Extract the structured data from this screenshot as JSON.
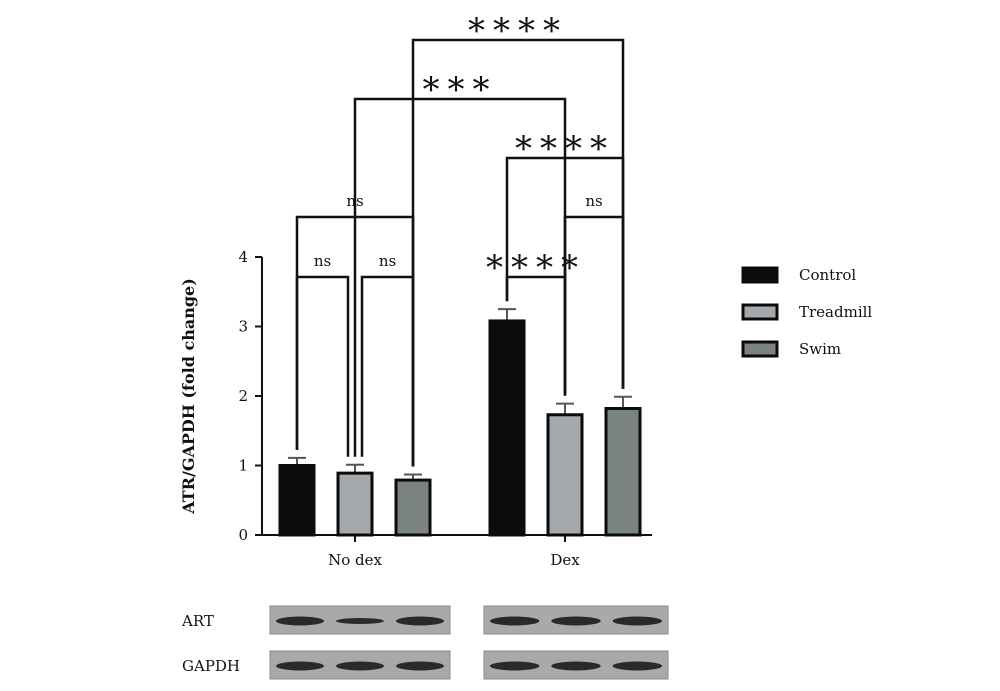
{
  "chart_data": {
    "type": "bar",
    "ylabel": "ATR/GAPDH (fold change)",
    "xlabel": "",
    "ylim": [
      0,
      4
    ],
    "yticks": [
      0,
      1,
      2,
      3,
      4
    ],
    "categories": [
      "No dex",
      "Dex"
    ],
    "series": [
      {
        "name": "Control",
        "color": "#0b0b0b",
        "values": [
          1.0,
          3.08
        ],
        "errors": [
          0.11,
          0.17
        ]
      },
      {
        "name": "Treadmill",
        "color": "#a3a9ad",
        "values": [
          0.89,
          1.73
        ],
        "errors": [
          0.12,
          0.16
        ]
      },
      {
        "name": "Swim",
        "color": "#7b837f",
        "values": [
          0.79,
          1.82
        ],
        "errors": [
          0.08,
          0.17
        ]
      }
    ],
    "legend_position": "right",
    "grid": false,
    "significance": [
      {
        "label": "ns",
        "from": [
          0,
          0
        ],
        "to": [
          0,
          1
        ],
        "level": 1
      },
      {
        "label": "ns",
        "from": [
          0,
          1
        ],
        "to": [
          0,
          2
        ],
        "level": 1
      },
      {
        "label": "ns",
        "from": [
          0,
          0
        ],
        "to": [
          0,
          2
        ],
        "level": 2
      },
      {
        "label": "****",
        "from": [
          1,
          0
        ],
        "to": [
          1,
          1
        ],
        "level": 1
      },
      {
        "label": "ns",
        "from": [
          1,
          1
        ],
        "to": [
          1,
          2
        ],
        "level": 2
      },
      {
        "label": "****",
        "from": [
          1,
          0
        ],
        "to": [
          1,
          2
        ],
        "level": 3
      },
      {
        "label": "***",
        "from": [
          0,
          1
        ],
        "to": [
          1,
          1
        ],
        "level": 4
      },
      {
        "label": "****",
        "from": [
          0,
          2
        ],
        "to": [
          1,
          2
        ],
        "level": 5
      }
    ]
  },
  "blots": {
    "rows": [
      {
        "label": "ART"
      },
      {
        "label": "GAPDH"
      }
    ]
  }
}
